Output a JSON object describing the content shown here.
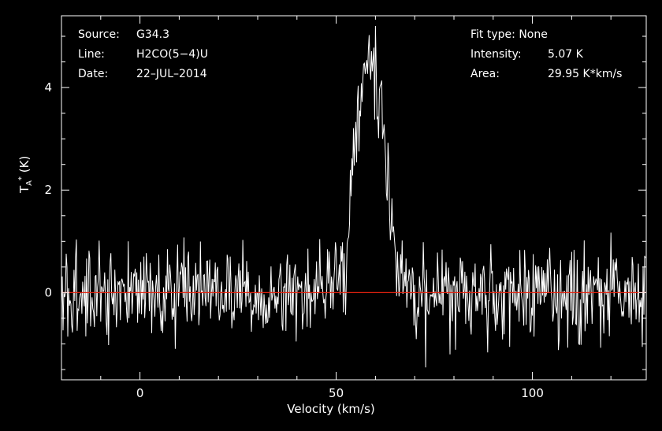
{
  "header": {
    "source_label": "Source:",
    "source_value": "G34.3",
    "line_label": "Line:",
    "line_value": "H2CO(5−4)U",
    "date_label": "Date:",
    "date_value": "22–JUL–2014",
    "fit_label": "Fit type:",
    "fit_value": "None",
    "intensity_label": "Intensity:",
    "intensity_value": "5.07 K",
    "area_label": "Area:",
    "area_value": "29.95 K*km/s"
  },
  "chart_data": {
    "type": "line",
    "title": "",
    "xlabel": "Velocity (km/s)",
    "ylabel_main": "T",
    "ylabel_sup": "*",
    "ylabel_sub": "A",
    "ylabel_unit": "(K)",
    "xlim": [
      -20,
      129
    ],
    "ylim": [
      -1.7,
      5.4
    ],
    "x_ticks": [
      0,
      50,
      100
    ],
    "y_ticks": [
      0,
      2,
      4
    ],
    "x_tick_labels": [
      "0",
      "50",
      "100"
    ],
    "y_tick_labels": [
      "0",
      "2",
      "4"
    ],
    "baseline": 0,
    "colors": {
      "spectrum": "#ffffff",
      "baseline": "#e8220f",
      "axes": "#ffffff",
      "background": "#000000"
    },
    "series": [
      {
        "values_shape": "noisy emission line",
        "peak_velocity": 58,
        "peak_intensity": 5.07,
        "line_width_sigma": 3.0,
        "noise_rms": 0.45,
        "velocity_range": [
          -20,
          129
        ],
        "channel_width": 0.2
      }
    ]
  }
}
